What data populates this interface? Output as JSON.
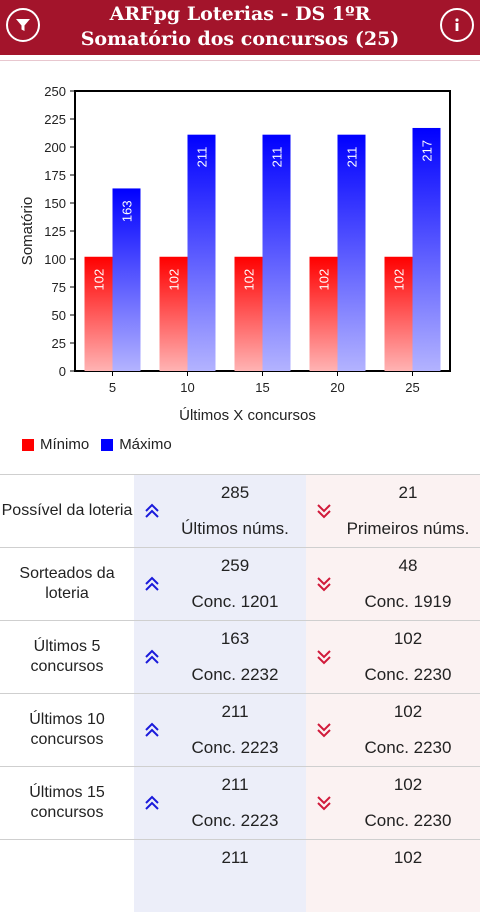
{
  "header": {
    "title_line1": "ARFpg Loterias - DS 1ºR",
    "title_line2": "Somatório dos concursos (25)"
  },
  "icons": {
    "left": "filter-icon",
    "right": "info-icon"
  },
  "colors": {
    "header": "#a3142b",
    "minimo": "#ff0000",
    "maximo": "#0000ff"
  },
  "chart_data": {
    "type": "bar",
    "categories": [
      "5",
      "10",
      "15",
      "20",
      "25"
    ],
    "series": [
      {
        "name": "Mínimo",
        "values": [
          102,
          102,
          102,
          102,
          102
        ],
        "color": "#ff0000"
      },
      {
        "name": "Máximo",
        "values": [
          163,
          211,
          211,
          211,
          217
        ],
        "color": "#0000ff"
      }
    ],
    "ylim": [
      0,
      250
    ],
    "yticks": [
      0,
      25,
      50,
      75,
      100,
      125,
      150,
      175,
      200,
      225,
      250
    ],
    "xlabel": "Últimos X concursos",
    "ylabel": "Somatório",
    "legend": "bottom-left",
    "grid": false
  },
  "legend": {
    "min_label": "Mínimo",
    "max_label": "Máximo"
  },
  "table": {
    "rows": [
      {
        "label": "Possível da loteria",
        "max_value": "285",
        "max_sub": "Últimos núms.",
        "min_value": "21",
        "min_sub": "Primeiros núms."
      },
      {
        "label": "Sorteados da loteria",
        "max_value": "259",
        "max_sub": "Conc. 1201",
        "min_value": "48",
        "min_sub": "Conc. 1919"
      },
      {
        "label": "Últimos 5 concursos",
        "max_value": "163",
        "max_sub": "Conc. 2232",
        "min_value": "102",
        "min_sub": "Conc. 2230"
      },
      {
        "label": "Últimos 10 concursos",
        "max_value": "211",
        "max_sub": "Conc. 2223",
        "min_value": "102",
        "min_sub": "Conc. 2230"
      },
      {
        "label": "Últimos 15 concursos",
        "max_value": "211",
        "max_sub": "Conc. 2223",
        "min_value": "102",
        "min_sub": "Conc. 2230"
      },
      {
        "label": "",
        "max_value": "211",
        "max_sub": "",
        "min_value": "102",
        "min_sub": ""
      }
    ]
  }
}
